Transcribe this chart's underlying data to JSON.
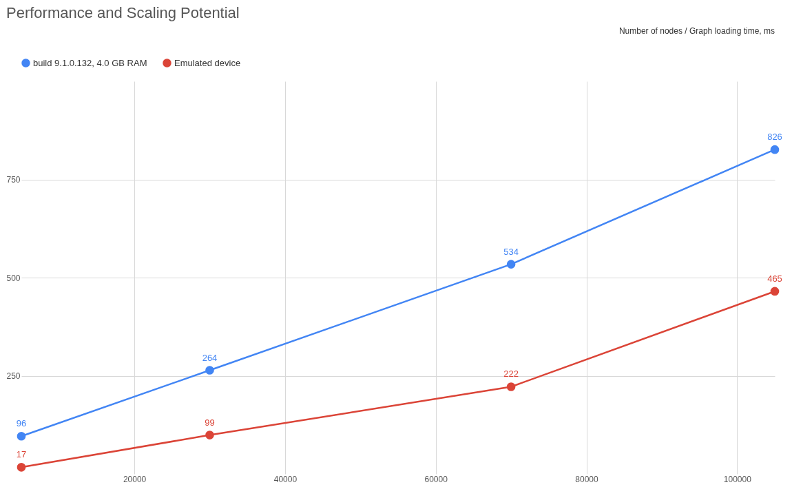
{
  "chart_data": {
    "type": "line",
    "title": "Performance and Scaling Potential",
    "annotations": [
      "Number of nodes / Graph loading time, ms"
    ],
    "x": [
      5000,
      30000,
      70000,
      105000
    ],
    "series": [
      {
        "name": "build 9.1.0.132, 4.0 GB RAM",
        "color": "#4285f4",
        "values": [
          96,
          264,
          534,
          826
        ]
      },
      {
        "name": "Emulated device",
        "color": "#db4437",
        "values": [
          17,
          99,
          222,
          465
        ]
      }
    ],
    "xlim": [
      5000,
      105000
    ],
    "xticks": [
      20000,
      40000,
      60000,
      80000,
      100000
    ],
    "ylim": [
      0,
      1000
    ],
    "yticks": [
      250,
      500,
      750
    ],
    "grid": true,
    "legend": "top left",
    "marker": "circle",
    "data_labels": true,
    "line_style": "solid"
  }
}
